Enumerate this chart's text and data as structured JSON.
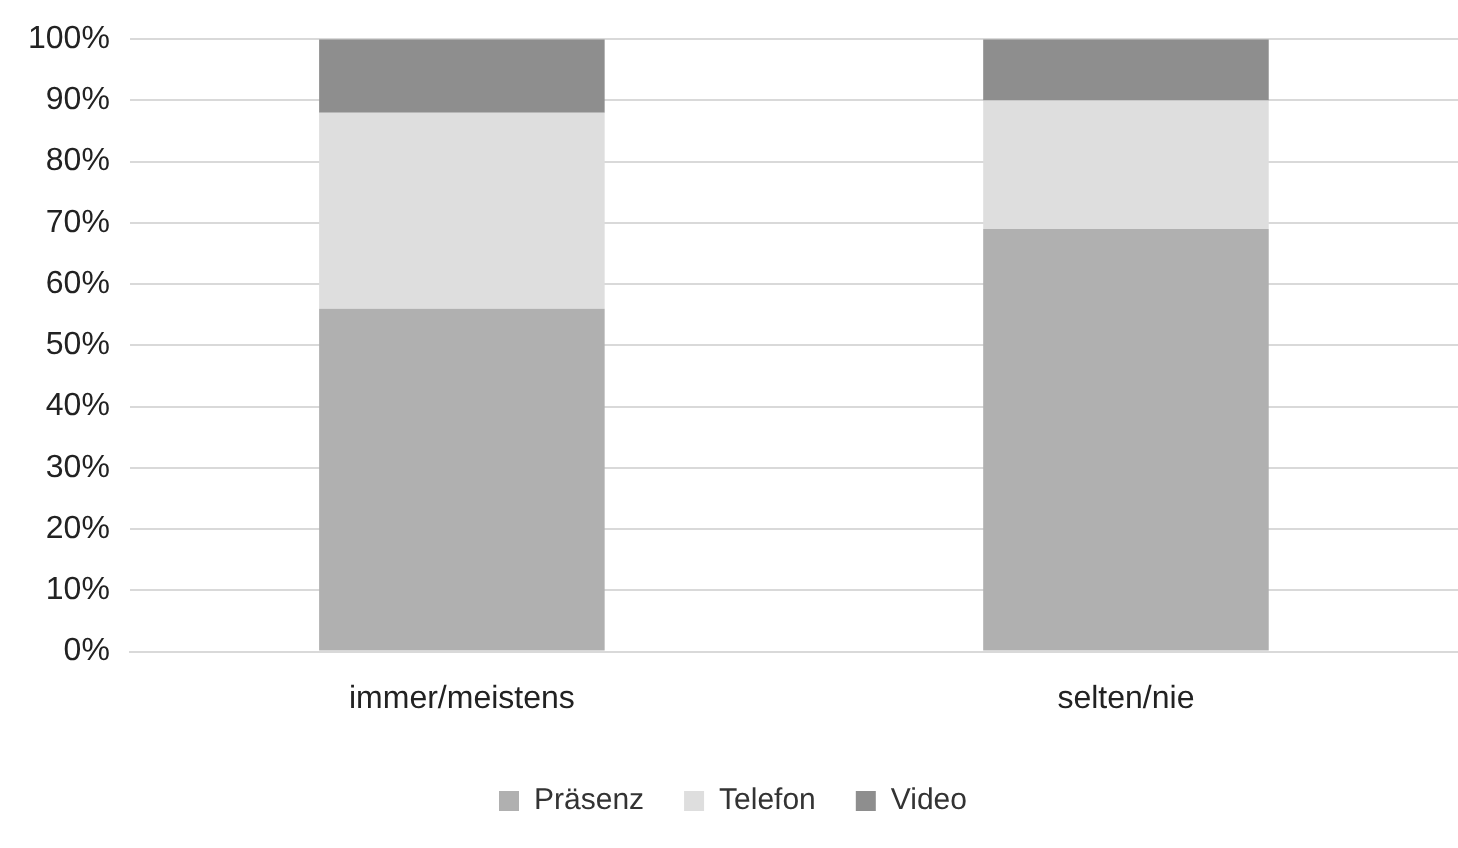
{
  "chart_data": {
    "type": "bar",
    "stacked": true,
    "categories": [
      "immer/meistens",
      "selten/nie"
    ],
    "series": [
      {
        "name": "Präsenz",
        "color": "#b0b0b0",
        "values": [
          56,
          69
        ]
      },
      {
        "name": "Telefon",
        "color": "#dedede",
        "values": [
          32,
          21
        ]
      },
      {
        "name": "Video",
        "color": "#8e8e8e",
        "values": [
          12,
          10
        ]
      }
    ],
    "ylim": [
      0,
      100
    ],
    "yticks": [
      {
        "value": 0,
        "label": "0%"
      },
      {
        "value": 10,
        "label": "10%"
      },
      {
        "value": 20,
        "label": "20%"
      },
      {
        "value": 30,
        "label": "30%"
      },
      {
        "value": 40,
        "label": "40%"
      },
      {
        "value": 50,
        "label": "50%"
      },
      {
        "value": 60,
        "label": "60%"
      },
      {
        "value": 70,
        "label": "70%"
      },
      {
        "value": 80,
        "label": "80%"
      },
      {
        "value": 90,
        "label": "90%"
      },
      {
        "value": 100,
        "label": "100%"
      }
    ],
    "grid": "y",
    "legend": "bottom"
  }
}
